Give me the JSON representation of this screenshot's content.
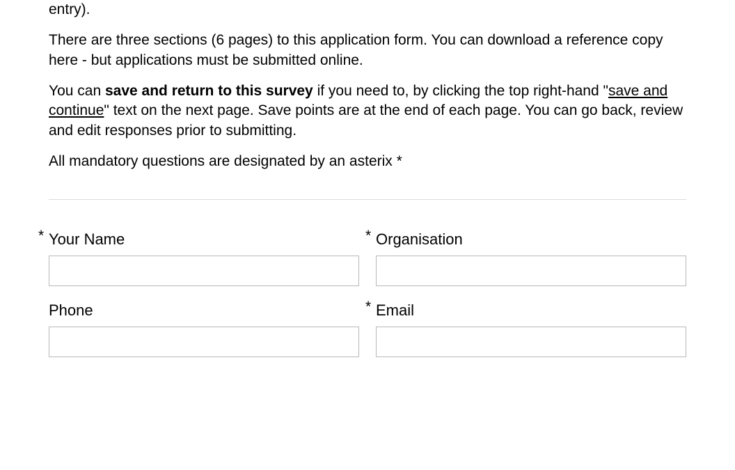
{
  "intro": {
    "p1": "entry).",
    "p2": "There are three sections (6 pages) to this application form.  You can download a reference copy here -  but applications must be submitted online.",
    "p3_pre": "You can ",
    "p3_bold": "save and return to this survey",
    "p3_mid": " if you need to, by clicking the top right-hand \"",
    "p3_underline": "save and continue",
    "p3_post": "\" text on the next page.  Save points are at the end of each page.  You can go back, review and edit responses prior to submitting.",
    "p4": "All mandatory questions are designated by an asterix *"
  },
  "form": {
    "required_symbol": "*",
    "fields": {
      "name": {
        "label": "Your Name",
        "required": true,
        "value": ""
      },
      "organisation": {
        "label": "Organisation",
        "required": true,
        "value": ""
      },
      "phone": {
        "label": "Phone",
        "required": false,
        "value": ""
      },
      "email": {
        "label": "Email",
        "required": true,
        "value": ""
      }
    }
  }
}
